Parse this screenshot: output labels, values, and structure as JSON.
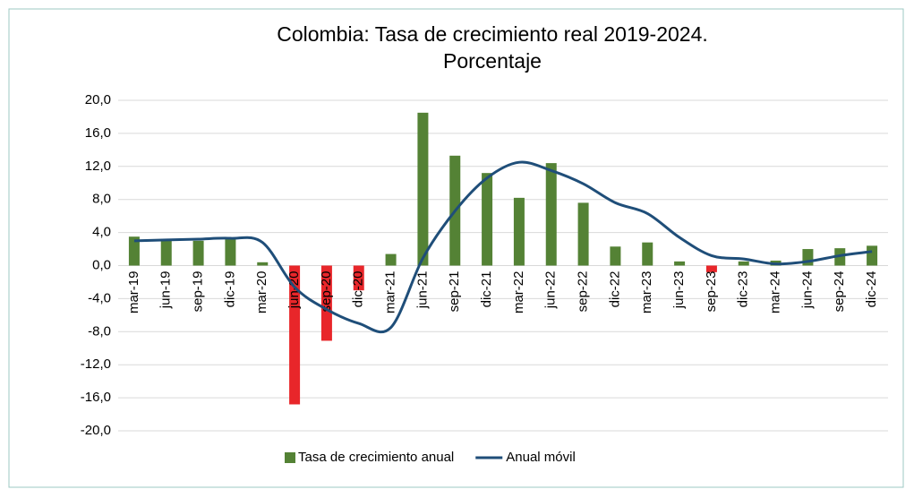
{
  "chart_data": {
    "type": "bar_line",
    "title": "Colombia: Tasa de crecimiento real 2019-2024.",
    "subtitle": "Porcentaje",
    "categories": [
      "mar-19",
      "jun-19",
      "sep-19",
      "dic-19",
      "mar-20",
      "jun-20",
      "sep-20",
      "dic-20",
      "mar-21",
      "jun-21",
      "sep-21",
      "dic-21",
      "mar-22",
      "jun-22",
      "sep-22",
      "dic-22",
      "mar-23",
      "jun-23",
      "sep-23",
      "dic-23",
      "mar-24",
      "jun-24",
      "sep-24",
      "dic-24"
    ],
    "series": [
      {
        "name": "Tasa de crecimiento anual",
        "type": "bar",
        "color": "#548235",
        "negative_color": "#e8262a",
        "values": [
          3.5,
          3.0,
          3.0,
          3.2,
          0.4,
          -16.8,
          -9.1,
          -3.0,
          1.4,
          18.5,
          13.3,
          11.2,
          8.2,
          12.4,
          7.6,
          2.3,
          2.8,
          0.5,
          -0.8,
          0.5,
          0.6,
          2.0,
          2.1,
          2.4
        ]
      },
      {
        "name": "Anual móvil",
        "type": "line",
        "color": "#1f4e79",
        "values": [
          3.0,
          3.1,
          3.2,
          3.3,
          2.8,
          -2.6,
          -5.3,
          -7.0,
          -7.5,
          0.9,
          6.6,
          10.6,
          12.5,
          11.5,
          9.9,
          7.6,
          6.3,
          3.4,
          1.2,
          0.8,
          0.2,
          0.5,
          1.2,
          1.7
        ]
      }
    ],
    "ylim": [
      -20,
      20
    ],
    "yticks": [
      {
        "value": -20,
        "label": "-20,0"
      },
      {
        "value": -16,
        "label": "-16,0"
      },
      {
        "value": -12,
        "label": "-12,0"
      },
      {
        "value": -8,
        "label": "-8,0"
      },
      {
        "value": -4,
        "label": "-4,0"
      },
      {
        "value": 0,
        "label": "0,0"
      },
      {
        "value": 4,
        "label": "4,0"
      },
      {
        "value": 8,
        "label": "8,0"
      },
      {
        "value": 12,
        "label": "12,0"
      },
      {
        "value": 16,
        "label": "16,0"
      },
      {
        "value": 20,
        "label": "20,0"
      }
    ],
    "grid": true,
    "legend": "bottom"
  }
}
